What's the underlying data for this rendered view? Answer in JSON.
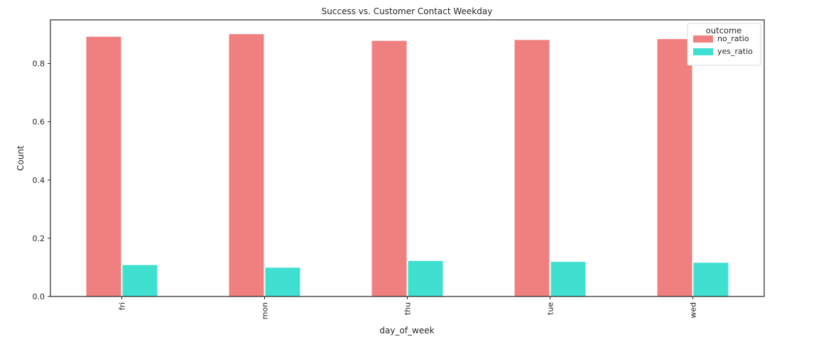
{
  "chart_data": {
    "type": "bar",
    "title": "Success vs. Customer Contact Weekday",
    "xlabel": "day_of_week",
    "ylabel": "Count",
    "categories": [
      "fri",
      "mon",
      "thu",
      "tue",
      "wed"
    ],
    "series": [
      {
        "name": "no_ratio",
        "color": "#f08080",
        "values": [
          0.892,
          0.901,
          0.878,
          0.881,
          0.884
        ]
      },
      {
        "name": "yes_ratio",
        "color": "#40e0d0",
        "values": [
          0.108,
          0.099,
          0.122,
          0.119,
          0.116
        ]
      }
    ],
    "ylim": [
      0,
      0.95
    ],
    "yticks": [
      "0.0",
      "0.2",
      "0.4",
      "0.6",
      "0.8"
    ],
    "grid": false,
    "legend": {
      "title": "outcome",
      "placement": "top-right"
    }
  }
}
